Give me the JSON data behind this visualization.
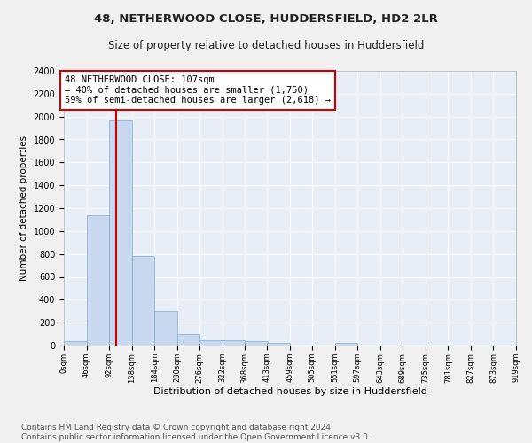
{
  "title": "48, NETHERWOOD CLOSE, HUDDERSFIELD, HD2 2LR",
  "subtitle": "Size of property relative to detached houses in Huddersfield",
  "xlabel": "Distribution of detached houses by size in Huddersfield",
  "ylabel": "Number of detached properties",
  "bar_color": "#c8d8ee",
  "bar_edge_color": "#7aaccc",
  "background_color": "#e8eef8",
  "grid_color": "#ffffff",
  "bin_edges": [
    0,
    46,
    92,
    138,
    184,
    230,
    276,
    322,
    368,
    413,
    459,
    505,
    551,
    597,
    643,
    689,
    735,
    781,
    827,
    873,
    919
  ],
  "bar_heights": [
    35,
    1140,
    1970,
    780,
    300,
    100,
    45,
    45,
    35,
    20,
    0,
    0,
    20,
    0,
    0,
    0,
    0,
    0,
    0,
    0
  ],
  "tick_labels": [
    "0sqm",
    "46sqm",
    "92sqm",
    "138sqm",
    "184sqm",
    "230sqm",
    "276sqm",
    "322sqm",
    "368sqm",
    "413sqm",
    "459sqm",
    "505sqm",
    "551sqm",
    "597sqm",
    "643sqm",
    "689sqm",
    "735sqm",
    "781sqm",
    "827sqm",
    "873sqm",
    "919sqm"
  ],
  "property_size": 107,
  "vline_color": "#cc0000",
  "annotation_line1": "48 NETHERWOOD CLOSE: 107sqm",
  "annotation_line2": "← 40% of detached houses are smaller (1,750)",
  "annotation_line3": "59% of semi-detached houses are larger (2,618) →",
  "annotation_box_color": "#ffffff",
  "annotation_box_edge": "#cc0000",
  "ylim": [
    0,
    2400
  ],
  "yticks": [
    0,
    200,
    400,
    600,
    800,
    1000,
    1200,
    1400,
    1600,
    1800,
    2000,
    2200,
    2400
  ],
  "footer_line1": "Contains HM Land Registry data © Crown copyright and database right 2024.",
  "footer_line2": "Contains public sector information licensed under the Open Government Licence v3.0.",
  "title_fontsize": 9.5,
  "subtitle_fontsize": 8.5,
  "xlabel_fontsize": 8,
  "ylabel_fontsize": 7.5,
  "tick_fontsize": 6,
  "annotation_fontsize": 7.5,
  "footer_fontsize": 6.5
}
